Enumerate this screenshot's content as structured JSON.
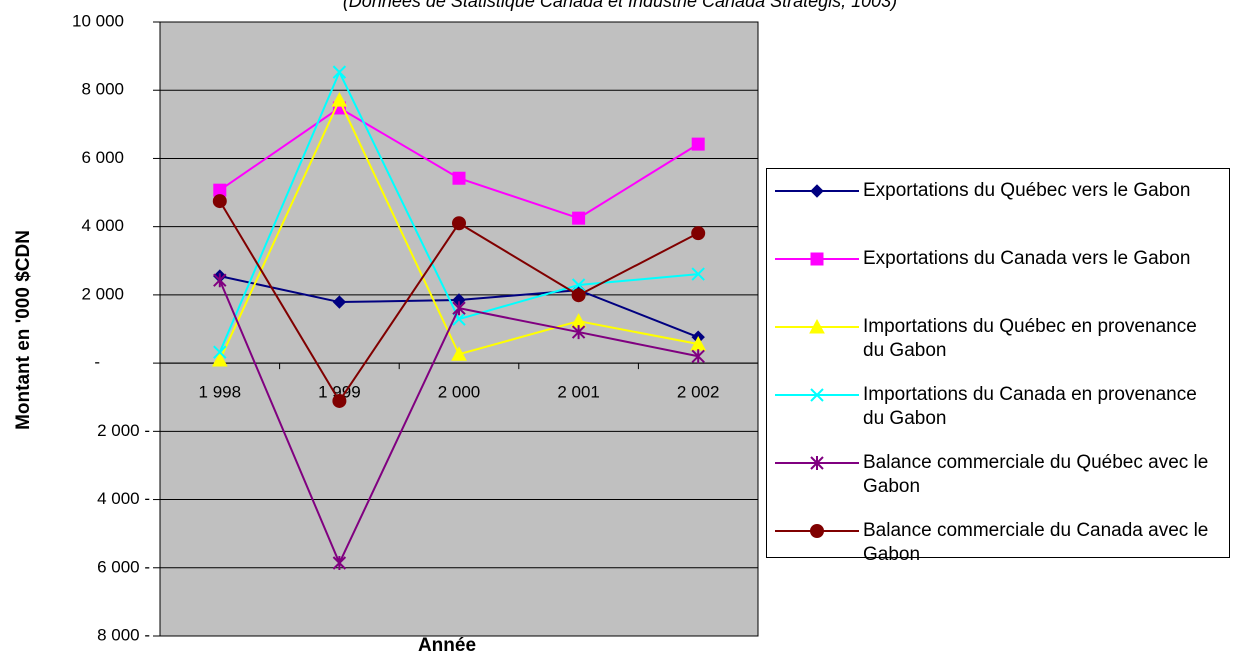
{
  "chart_data": {
    "type": "line",
    "subtitle": "(Données de Statistique Canada et Industrie Canada Strategis, 1003)",
    "x_label": "Année",
    "y_label": "Montant en '000 $CDN",
    "categories": [
      "1 998",
      "1 999",
      "2 000",
      "2 001",
      "2 002"
    ],
    "ylim": [
      -8000,
      10000
    ],
    "yticks": [
      {
        "value": -8000,
        "label": "8 000 -"
      },
      {
        "value": -6000,
        "label": "6 000 -"
      },
      {
        "value": -4000,
        "label": "4 000 -"
      },
      {
        "value": -2000,
        "label": "2 000 -"
      },
      {
        "value": 0,
        "label": "-"
      },
      {
        "value": 2000,
        "label": "2 000"
      },
      {
        "value": 4000,
        "label": "4 000"
      },
      {
        "value": 6000,
        "label": "6 000"
      },
      {
        "value": 8000,
        "label": "8 000"
      },
      {
        "value": 10000,
        "label": "10 000"
      }
    ],
    "grid": true,
    "background": "#c0c0c0",
    "legend": "right",
    "series": [
      {
        "name": "Exportations du Québec vers le Gabon",
        "color": "#000080",
        "marker": "diamond",
        "values": [
          2550,
          1790,
          1850,
          2140,
          760
        ]
      },
      {
        "name": "Exportations du Canada vers le Gabon",
        "color": "#ff00ff",
        "marker": "square",
        "values": [
          5070,
          7480,
          5420,
          4250,
          6420
        ]
      },
      {
        "name": "Importations du Québec en provenance du Gabon",
        "color": "#ffff00",
        "marker": "triangle",
        "values": [
          90,
          7710,
          260,
          1230,
          560
        ]
      },
      {
        "name": "Importations du Canada en provenance du Gabon",
        "color": "#00ffff",
        "marker": "x",
        "values": [
          320,
          8530,
          1290,
          2290,
          2610
        ]
      },
      {
        "name": "Balance commerciale du Québec avec le Gabon",
        "color": "#800080",
        "marker": "star",
        "values": [
          2430,
          -5860,
          1610,
          910,
          200
        ]
      },
      {
        "name": "Balance commerciale du Canada avec le Gabon",
        "color": "#800000",
        "marker": "circle",
        "values": [
          4750,
          -1110,
          4100,
          1990,
          3810
        ]
      }
    ]
  }
}
